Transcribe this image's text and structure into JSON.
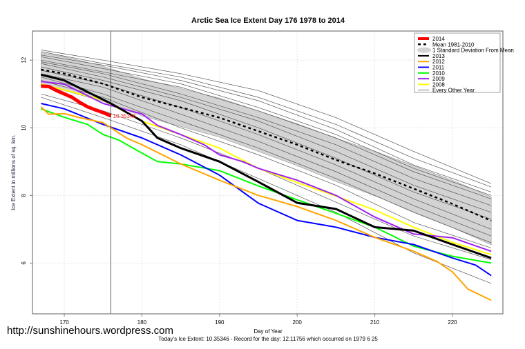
{
  "chart_data": {
    "type": "line",
    "title": "Arctic Sea Ice Extent Day 176 1978 to 2014",
    "xlabel": "Day of Year",
    "ylabel": "Ice Extent in millions of sq. km.",
    "xlim": [
      165.9,
      226.5
    ],
    "ylim": [
      4.5,
      12.86
    ],
    "xticks": [
      170,
      180,
      190,
      200,
      210,
      220
    ],
    "yticks": [
      6,
      8,
      10,
      12
    ],
    "grid": true,
    "legend_position": "top-right",
    "marker_day": 176,
    "marker_label": "10.35346",
    "subtitle": "Today's Ice Extent: 10.35346  - Record for the day: 12.11756 which occurred on 1979 6 25",
    "watermark": "http://sunshinehours.wordpress.com",
    "mean": {
      "name": "Mean 1981-2010",
      "color": "#000000",
      "x": [
        167,
        170,
        175,
        180,
        185,
        190,
        195,
        200,
        205,
        210,
        215,
        220,
        225
      ],
      "y": [
        11.72,
        11.6,
        11.3,
        10.9,
        10.6,
        10.3,
        9.9,
        9.5,
        9.05,
        8.65,
        8.2,
        7.75,
        7.25
      ]
    },
    "sd_band": {
      "name": "1 Standard Deviation From Mean",
      "color": "#d3d3d3",
      "x": [
        167,
        170,
        175,
        180,
        185,
        190,
        195,
        200,
        205,
        210,
        215,
        220,
        225
      ],
      "sd": [
        0.5,
        0.5,
        0.52,
        0.55,
        0.56,
        0.58,
        0.6,
        0.62,
        0.64,
        0.66,
        0.68,
        0.7,
        0.71
      ]
    },
    "series": [
      {
        "name": "2014",
        "color": "#ff0000",
        "width": 5,
        "x": [
          167,
          168,
          169,
          170,
          171,
          172,
          173,
          174,
          175,
          176
        ],
        "y": [
          11.23,
          11.22,
          11.1,
          11.0,
          10.9,
          10.75,
          10.62,
          10.53,
          10.45,
          10.35
        ]
      },
      {
        "name": "2013",
        "color": "#000000",
        "width": 3,
        "x": [
          167,
          170,
          176,
          180,
          182,
          185,
          190,
          195,
          200,
          205,
          210,
          215,
          220,
          225
        ],
        "y": [
          11.57,
          11.4,
          10.72,
          10.2,
          9.7,
          9.4,
          9.0,
          8.4,
          7.78,
          7.6,
          7.06,
          6.96,
          6.55,
          6.15
        ]
      },
      {
        "name": "2012",
        "color": "#ffa500",
        "width": 2,
        "x": [
          167,
          168,
          170,
          172,
          175,
          178,
          180,
          185,
          190,
          195,
          200,
          205,
          210,
          215,
          218,
          220,
          222,
          225
        ],
        "y": [
          10.62,
          10.4,
          10.42,
          10.3,
          10.15,
          9.7,
          9.5,
          8.93,
          8.45,
          8.0,
          7.67,
          7.26,
          6.76,
          6.35,
          6.05,
          5.74,
          5.23,
          4.9
        ]
      },
      {
        "name": "2011",
        "color": "#0000ff",
        "width": 2,
        "x": [
          167,
          170,
          175,
          180,
          185,
          190,
          195,
          200,
          205,
          210,
          215,
          220,
          223,
          225
        ],
        "y": [
          10.72,
          10.56,
          10.1,
          9.7,
          9.2,
          8.6,
          7.77,
          7.26,
          7.06,
          6.76,
          6.55,
          6.15,
          5.94,
          5.63
        ]
      },
      {
        "name": "2010",
        "color": "#00ff00",
        "width": 2,
        "x": [
          167,
          170,
          173,
          175,
          177,
          180,
          182,
          185,
          190,
          195,
          200,
          205,
          210,
          215,
          220,
          225
        ],
        "y": [
          10.56,
          10.31,
          10.1,
          9.8,
          9.64,
          9.25,
          9.0,
          8.93,
          8.73,
          8.28,
          7.87,
          7.47,
          7.06,
          6.5,
          6.2,
          6.0
        ]
      },
      {
        "name": "2009",
        "color": "#a020f0",
        "width": 2,
        "x": [
          167,
          170,
          175,
          180,
          182,
          185,
          188,
          190,
          193,
          195,
          200,
          205,
          210,
          215,
          220,
          225
        ],
        "y": [
          11.37,
          11.29,
          10.72,
          10.41,
          10.07,
          9.8,
          9.5,
          9.2,
          9.0,
          8.8,
          8.45,
          8.0,
          7.36,
          6.86,
          6.75,
          6.35
        ]
      },
      {
        "name": "2008",
        "color": "#ffff00",
        "width": 2,
        "x": [
          167,
          170,
          175,
          180,
          185,
          190,
          195,
          200,
          205,
          210,
          215,
          220,
          225
        ],
        "y": [
          11.29,
          11.12,
          10.82,
          10.2,
          9.8,
          9.4,
          8.8,
          8.38,
          7.98,
          7.57,
          7.06,
          6.61,
          6.25
        ]
      }
    ],
    "every_other_year": {
      "name": "Every Other Year",
      "color": "#555555",
      "x": [
        167,
        175,
        185,
        195,
        205,
        215,
        225
      ],
      "lines": [
        [
          12.3,
          12.0,
          11.6,
          11.1,
          10.3,
          9.3,
          8.35
        ],
        [
          12.25,
          11.9,
          11.5,
          10.9,
          10.1,
          9.1,
          8.25
        ],
        [
          12.15,
          11.85,
          11.4,
          10.8,
          9.95,
          8.9,
          8.1
        ],
        [
          12.1,
          11.75,
          11.3,
          10.6,
          9.8,
          8.8,
          8.0
        ],
        [
          12.0,
          11.65,
          11.2,
          10.5,
          9.7,
          8.7,
          7.9
        ],
        [
          11.95,
          11.6,
          11.0,
          10.3,
          9.5,
          8.5,
          7.7
        ],
        [
          11.9,
          11.5,
          10.9,
          10.2,
          9.3,
          8.3,
          7.5
        ],
        [
          11.8,
          11.4,
          10.8,
          10.0,
          9.1,
          8.1,
          7.3
        ],
        [
          11.7,
          11.3,
          10.6,
          9.8,
          8.9,
          7.9,
          7.0
        ],
        [
          11.6,
          11.2,
          10.4,
          9.6,
          8.7,
          7.7,
          6.8
        ],
        [
          11.5,
          11.0,
          10.2,
          9.4,
          8.5,
          7.5,
          6.6
        ],
        [
          11.4,
          10.9,
          10.0,
          9.2,
          8.3,
          7.2,
          6.45
        ],
        [
          11.0,
          10.5,
          9.7,
          8.8,
          7.8,
          6.8,
          6.1
        ],
        [
          10.9,
          10.3,
          9.5,
          8.5,
          7.5,
          6.3,
          5.4
        ]
      ]
    }
  }
}
